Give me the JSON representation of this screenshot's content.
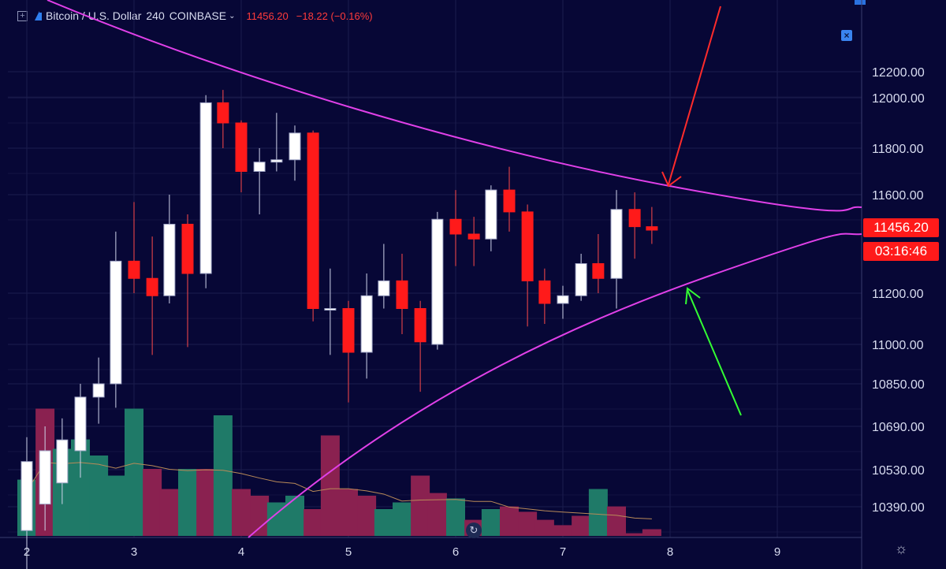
{
  "header": {
    "symbol": "Bitcoin / U.S. Dollar",
    "interval": "240",
    "exchange": "COINBASE",
    "last_price": "11456.20",
    "change": "−18.22 (−0.16%)"
  },
  "price_badge": "11456.20",
  "countdown_badge": "03:16:46",
  "colors": {
    "background": "#070736",
    "grid": "#1b1c4d",
    "up": "#ffffff",
    "down": "#ff1a1a",
    "volume_up": "#1f7a68",
    "volume_down": "#8a2150",
    "trendline": "#e040e8",
    "arrow_down": "#ff2b2b",
    "arrow_up": "#33ff33",
    "volume_ma": "#b98a58"
  },
  "chart_data": {
    "type": "candlestick",
    "y_axis_labels": [
      "12200.00",
      "12000.00",
      "11800.00",
      "11600.00",
      "11200.00",
      "11000.00",
      "10850.00",
      "10690.00",
      "10530.00",
      "10390.00"
    ],
    "x_axis_labels": [
      "2",
      "3",
      "4",
      "5",
      "6",
      "7",
      "8",
      "9"
    ],
    "candles": [
      {
        "x": 2.0,
        "o": 10300,
        "h": 10650,
        "l": 10150,
        "c": 10560
      },
      {
        "x": 2.17,
        "o": 10400,
        "h": 10690,
        "l": 10300,
        "c": 10600
      },
      {
        "x": 2.33,
        "o": 10480,
        "h": 10720,
        "l": 10400,
        "c": 10640
      },
      {
        "x": 2.5,
        "o": 10600,
        "h": 10850,
        "l": 10500,
        "c": 10800
      },
      {
        "x": 2.67,
        "o": 10800,
        "h": 10950,
        "l": 10700,
        "c": 10850
      },
      {
        "x": 2.83,
        "o": 10850,
        "h": 11450,
        "l": 10760,
        "c": 11330
      },
      {
        "x": 3.0,
        "o": 11330,
        "h": 11570,
        "l": 11200,
        "c": 11260
      },
      {
        "x": 3.17,
        "o": 11260,
        "h": 11430,
        "l": 10960,
        "c": 11190
      },
      {
        "x": 3.33,
        "o": 11190,
        "h": 11600,
        "l": 11160,
        "c": 11480
      },
      {
        "x": 3.5,
        "o": 11480,
        "h": 11520,
        "l": 10990,
        "c": 11280
      },
      {
        "x": 3.67,
        "o": 11280,
        "h": 12020,
        "l": 11220,
        "c": 11980
      },
      {
        "x": 3.83,
        "o": 11980,
        "h": 12060,
        "l": 11800,
        "c": 11900
      },
      {
        "x": 4.0,
        "o": 11900,
        "h": 11910,
        "l": 11610,
        "c": 11700
      },
      {
        "x": 4.17,
        "o": 11700,
        "h": 11800,
        "l": 11520,
        "c": 11740
      },
      {
        "x": 4.33,
        "o": 11740,
        "h": 11940,
        "l": 11700,
        "c": 11750
      },
      {
        "x": 4.5,
        "o": 11750,
        "h": 11890,
        "l": 11660,
        "c": 11860
      },
      {
        "x": 4.67,
        "o": 11860,
        "h": 11870,
        "l": 11090,
        "c": 11140
      },
      {
        "x": 4.83,
        "o": 11140,
        "h": 11300,
        "l": 10960,
        "c": 11140
      },
      {
        "x": 5.0,
        "o": 11140,
        "h": 11170,
        "l": 10780,
        "c": 10970
      },
      {
        "x": 5.17,
        "o": 10970,
        "h": 11280,
        "l": 10870,
        "c": 11190
      },
      {
        "x": 5.33,
        "o": 11190,
        "h": 11400,
        "l": 11140,
        "c": 11250
      },
      {
        "x": 5.5,
        "o": 11250,
        "h": 11360,
        "l": 11040,
        "c": 11140
      },
      {
        "x": 5.67,
        "o": 11140,
        "h": 11170,
        "l": 10820,
        "c": 11010
      },
      {
        "x": 5.83,
        "o": 11000,
        "h": 11530,
        "l": 10980,
        "c": 11500
      },
      {
        "x": 6.0,
        "o": 11500,
        "h": 11620,
        "l": 11310,
        "c": 11440
      },
      {
        "x": 6.17,
        "o": 11440,
        "h": 11510,
        "l": 11310,
        "c": 11420
      },
      {
        "x": 6.33,
        "o": 11420,
        "h": 11640,
        "l": 11370,
        "c": 11620
      },
      {
        "x": 6.5,
        "o": 11620,
        "h": 11720,
        "l": 11450,
        "c": 11530
      },
      {
        "x": 6.67,
        "o": 11530,
        "h": 11560,
        "l": 11070,
        "c": 11250
      },
      {
        "x": 6.83,
        "o": 11250,
        "h": 11300,
        "l": 11080,
        "c": 11160
      },
      {
        "x": 7.0,
        "o": 11160,
        "h": 11230,
        "l": 11100,
        "c": 11190
      },
      {
        "x": 7.17,
        "o": 11190,
        "h": 11360,
        "l": 11170,
        "c": 11320
      },
      {
        "x": 7.33,
        "o": 11320,
        "h": 11440,
        "l": 11200,
        "c": 11260
      },
      {
        "x": 7.5,
        "o": 11260,
        "h": 11620,
        "l": 11140,
        "c": 11540
      },
      {
        "x": 7.67,
        "o": 11540,
        "h": 11610,
        "l": 11340,
        "c": 11470
      },
      {
        "x": 7.83,
        "o": 11470,
        "h": 11550,
        "l": 11400,
        "c": 11456
      }
    ],
    "volume": [
      0.42,
      0.95,
      0.65,
      0.72,
      0.6,
      0.45,
      0.95,
      0.5,
      0.35,
      0.5,
      0.5,
      0.9,
      0.35,
      0.3,
      0.25,
      0.3,
      0.2,
      0.75,
      0.35,
      0.3,
      0.2,
      0.25,
      0.45,
      0.32,
      0.28,
      0.12,
      0.2,
      0.22,
      0.18,
      0.12,
      0.08,
      0.15,
      0.35,
      0.22,
      0.02,
      0.05
    ],
    "volume_up": [
      true,
      false,
      true,
      true,
      true,
      true,
      true,
      false,
      false,
      true,
      false,
      true,
      false,
      false,
      true,
      true,
      false,
      false,
      false,
      false,
      true,
      true,
      false,
      false,
      true,
      false,
      true,
      false,
      false,
      false,
      false,
      false,
      true,
      false,
      false,
      false
    ]
  }
}
